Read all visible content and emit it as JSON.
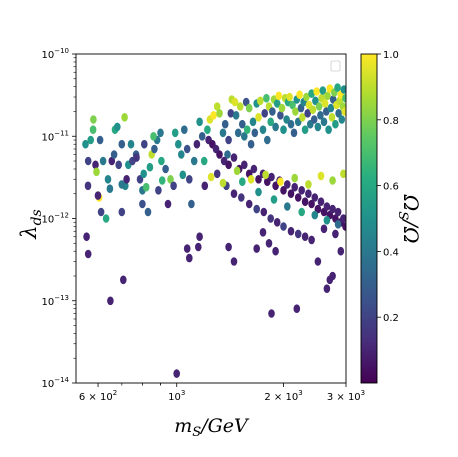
{
  "chart_data": {
    "type": "scatter",
    "xlabel": "m_S/GeV",
    "ylabel": "λ_ds",
    "colorbar_label": "Ω_S/Ω",
    "x_scale": "log",
    "y_scale": "log",
    "xlim": [
      520,
      3000
    ],
    "ylim": [
      1e-14,
      1e-10
    ],
    "clim": [
      0,
      1
    ],
    "colormap": "viridis",
    "legend": "upper-right, empty box",
    "grid": false,
    "x_ticks": [
      {
        "value": 600,
        "mant": "6",
        "exp": "2"
      },
      {
        "value": 1000,
        "mant": "",
        "exp": "3"
      },
      {
        "value": 2000,
        "mant": "2",
        "exp": "3"
      },
      {
        "value": 3000,
        "mant": "3",
        "exp": "3"
      }
    ],
    "y_ticks": [
      {
        "value": 1e-14,
        "exp": "−14"
      },
      {
        "value": 1e-13,
        "exp": "−13"
      },
      {
        "value": 1e-12,
        "exp": "−12"
      },
      {
        "value": 1e-11,
        "exp": "−11"
      },
      {
        "value": 1e-10,
        "exp": "−10"
      }
    ],
    "colorbar_ticks": [
      "0.2",
      "0.4",
      "0.6",
      "0.8",
      "1.0"
    ],
    "colorbar_tick_values": [
      0.2,
      0.4,
      0.6,
      0.8,
      1.0
    ],
    "points": [
      [
        553,
        8e-12,
        0.5
      ],
      [
        563,
        5e-12,
        0.2
      ],
      [
        557,
        6e-13,
        0.1
      ],
      [
        563,
        3.7e-13,
        0.1
      ],
      [
        582,
        1.6e-11,
        0.8
      ],
      [
        581,
        1.2e-11,
        0.7
      ],
      [
        572,
        9e-12,
        0.55
      ],
      [
        562,
        2.5e-12,
        0.15
      ],
      [
        590,
        4.5e-12,
        0.1
      ],
      [
        594,
        3.7e-12,
        0.85
      ],
      [
        604,
        1.8e-12,
        1.0
      ],
      [
        608,
        9e-12,
        0.3
      ],
      [
        620,
        5e-12,
        0.4
      ],
      [
        612,
        1.2e-12,
        0.2
      ],
      [
        632,
        1e-12,
        0.6
      ],
      [
        648,
        2.3e-12,
        0.4
      ],
      [
        656,
        5e-12,
        0.1
      ],
      [
        666,
        6e-12,
        0.3
      ],
      [
        670,
        1.2e-11,
        0.6
      ],
      [
        680,
        1.3e-11,
        0.5
      ],
      [
        686,
        4.5e-12,
        0.2
      ],
      [
        700,
        8e-12,
        0.3
      ],
      [
        713,
        1.7e-11,
        0.85
      ],
      [
        716,
        2.5e-12,
        0.45
      ],
      [
        722,
        3e-12,
        0.1
      ],
      [
        730,
        4.5e-12,
        0.5
      ],
      [
        700,
        1.2e-12,
        0.2
      ],
      [
        650,
        1e-13,
        0.1
      ],
      [
        707,
        1.8e-13,
        0.1
      ],
      [
        743,
        8e-12,
        0.45
      ],
      [
        750,
        5e-12,
        0.2
      ],
      [
        768,
        6e-12,
        0.3
      ],
      [
        788,
        3e-12,
        0.2
      ],
      [
        800,
        1.5e-12,
        0.25
      ],
      [
        800,
        2.2e-12,
        0.4
      ],
      [
        807,
        3.5e-12,
        0.5
      ],
      [
        820,
        2.4e-12,
        0.7
      ],
      [
        830,
        1.2e-12,
        0.3
      ],
      [
        810,
        8e-12,
        0.2
      ],
      [
        850,
        6e-12,
        0.9
      ],
      [
        865,
        7e-12,
        0.3
      ],
      [
        880,
        9e-12,
        0.4
      ],
      [
        888,
        2.2e-12,
        0.2
      ],
      [
        900,
        1.1e-11,
        0.4
      ],
      [
        860,
        1e-11,
        0.7
      ],
      [
        905,
        5e-12,
        0.6
      ],
      [
        930,
        4e-12,
        0.3
      ],
      [
        945,
        1.5e-12,
        0.1
      ],
      [
        960,
        3e-12,
        0.8
      ],
      [
        990,
        1.1e-11,
        0.55
      ],
      [
        1010,
        8e-12,
        0.5
      ],
      [
        1030,
        6e-12,
        0.45
      ],
      [
        1050,
        1.2e-11,
        0.35
      ],
      [
        1070,
        7e-12,
        0.25
      ],
      [
        1085,
        3e-12,
        0.2
      ],
      [
        1100,
        1.5e-12,
        0.3
      ],
      [
        1120,
        5e-12,
        0.4
      ],
      [
        1140,
        8e-12,
        0.1
      ],
      [
        1160,
        1.5e-11,
        0.5
      ],
      [
        1180,
        1e-11,
        0.3
      ],
      [
        1195,
        5e-12,
        0.6
      ],
      [
        1000,
        1.3e-14,
        0.1
      ],
      [
        1070,
        4.3e-13,
        0.1
      ],
      [
        1085,
        3.3e-13,
        0.1
      ],
      [
        1150,
        4.5e-13,
        0.1
      ],
      [
        1160,
        6e-13,
        0.1
      ],
      [
        1200,
        2.5e-12,
        0.1
      ],
      [
        1220,
        1.2e-11,
        0.6
      ],
      [
        1240,
        1.6e-11,
        0.95
      ],
      [
        1270,
        1.8e-11,
        1.0
      ],
      [
        1300,
        2.3e-11,
        0.9
      ],
      [
        1320,
        1.9e-11,
        0.85
      ],
      [
        1350,
        1.1e-11,
        0.4
      ],
      [
        1370,
        1.4e-11,
        0.3
      ],
      [
        1390,
        6e-12,
        0.35
      ],
      [
        1400,
        9e-12,
        0.2
      ],
      [
        1420,
        1.9e-11,
        0.2
      ],
      [
        1430,
        2.8e-11,
        0.9
      ],
      [
        1460,
        2.6e-11,
        0.95
      ],
      [
        1470,
        1.8e-11,
        0.4
      ],
      [
        1490,
        1.1e-11,
        0.35
      ],
      [
        1510,
        2.3e-11,
        0.9
      ],
      [
        1530,
        1.4e-11,
        0.3
      ],
      [
        1550,
        1e-11,
        0.4
      ],
      [
        1570,
        2.6e-11,
        0.25
      ],
      [
        1580,
        1.2e-11,
        0.65
      ],
      [
        1600,
        2.2e-11,
        0.8
      ],
      [
        1620,
        8e-12,
        0.3
      ],
      [
        1640,
        1.5e-11,
        0.45
      ],
      [
        1660,
        1.1e-11,
        0.3
      ],
      [
        1680,
        2.5e-11,
        0.5
      ],
      [
        1700,
        1.7e-11,
        0.95
      ],
      [
        1720,
        2.7e-11,
        0.9
      ],
      [
        1750,
        1.2e-11,
        0.45
      ],
      [
        1770,
        1.9e-11,
        0.2
      ],
      [
        1790,
        2.9e-11,
        0.7
      ],
      [
        1800,
        9e-12,
        0.35
      ],
      [
        1820,
        2.3e-11,
        0.9
      ],
      [
        1840,
        1.5e-11,
        0.6
      ],
      [
        1860,
        2e-11,
        0.3
      ],
      [
        1880,
        2.8e-11,
        0.85
      ],
      [
        1900,
        1.3e-11,
        0.4
      ],
      [
        1920,
        2.5e-11,
        0.55
      ],
      [
        1940,
        3.1e-11,
        1.0
      ],
      [
        1960,
        1.8e-11,
        0.25
      ],
      [
        1980,
        2.2e-11,
        0.85
      ],
      [
        2000,
        1.2e-11,
        0.5
      ],
      [
        2020,
        2.9e-11,
        0.9
      ],
      [
        2040,
        1.6e-11,
        0.45
      ],
      [
        2060,
        2.6e-11,
        0.6
      ],
      [
        2080,
        3e-11,
        0.95
      ],
      [
        2100,
        1.4e-11,
        0.35
      ],
      [
        2120,
        2.4e-11,
        0.7
      ],
      [
        2140,
        1.1e-11,
        0.3
      ],
      [
        2160,
        2e-11,
        0.85
      ],
      [
        2180,
        2.8e-11,
        0.5
      ],
      [
        2200,
        1.5e-11,
        0.4
      ],
      [
        2220,
        3.2e-11,
        1.0
      ],
      [
        2240,
        2.2e-11,
        0.3
      ],
      [
        2260,
        1.7e-11,
        0.9
      ],
      [
        2280,
        2.6e-11,
        0.45
      ],
      [
        2300,
        1.2e-11,
        0.55
      ],
      [
        2320,
        3e-11,
        0.85
      ],
      [
        2340,
        1.9e-11,
        0.2
      ],
      [
        2360,
        2.4e-11,
        0.95
      ],
      [
        2380,
        1.4e-11,
        0.4
      ],
      [
        2400,
        3.3e-11,
        0.6
      ],
      [
        2420,
        2.1e-11,
        0.9
      ],
      [
        2440,
        1.6e-11,
        0.3
      ],
      [
        2460,
        2.7e-11,
        0.5
      ],
      [
        2480,
        3.5e-11,
        1.0
      ],
      [
        2500,
        1.3e-11,
        0.45
      ],
      [
        2520,
        2.3e-11,
        0.8
      ],
      [
        2540,
        1.8e-11,
        0.35
      ],
      [
        2560,
        2.9e-11,
        0.9
      ],
      [
        2580,
        3.6e-11,
        0.55
      ],
      [
        2600,
        1.5e-11,
        0.4
      ],
      [
        2620,
        2.5e-11,
        0.95
      ],
      [
        2640,
        2e-11,
        0.3
      ],
      [
        2660,
        3.1e-11,
        0.85
      ],
      [
        2680,
        1.2e-11,
        0.5
      ],
      [
        2700,
        3.8e-11,
        1.0
      ],
      [
        2720,
        2.2e-11,
        0.45
      ],
      [
        2740,
        1.7e-11,
        0.9
      ],
      [
        2760,
        2.8e-11,
        0.3
      ],
      [
        2780,
        3.4e-11,
        0.8
      ],
      [
        2800,
        1.4e-11,
        0.55
      ],
      [
        2820,
        2.4e-11,
        0.95
      ],
      [
        2840,
        3.9e-11,
        0.6
      ],
      [
        2860,
        1.9e-11,
        0.35
      ],
      [
        2880,
        2.7e-11,
        0.9
      ],
      [
        2900,
        3.2e-11,
        1.0
      ],
      [
        2920,
        1.6e-11,
        0.45
      ],
      [
        2940,
        2.3e-11,
        0.85
      ],
      [
        2960,
        3.7e-11,
        0.5
      ],
      [
        2975,
        2e-11,
        0.95
      ],
      [
        2990,
        2.9e-11,
        0.7
      ],
      [
        1230,
        9e-12,
        0.1
      ],
      [
        1260,
        8e-12,
        0.05
      ],
      [
        1290,
        7e-12,
        0.1
      ],
      [
        1320,
        6e-12,
        0.05
      ],
      [
        1360,
        5e-12,
        0.1
      ],
      [
        1400,
        4.5e-12,
        0.05
      ],
      [
        1450,
        5.5e-12,
        0.1
      ],
      [
        1500,
        4e-12,
        0.05
      ],
      [
        1550,
        4.5e-12,
        0.1
      ],
      [
        1600,
        3.5e-12,
        0.05
      ],
      [
        1650,
        4e-12,
        0.1
      ],
      [
        1700,
        3e-12,
        0.05
      ],
      [
        1750,
        3.5e-12,
        0.1
      ],
      [
        1800,
        2.8e-12,
        0.05
      ],
      [
        1850,
        3.2e-12,
        0.1
      ],
      [
        1900,
        2.5e-12,
        0.05
      ],
      [
        1950,
        2.9e-12,
        0.1
      ],
      [
        2000,
        2.2e-12,
        0.05
      ],
      [
        2050,
        2.6e-12,
        0.1
      ],
      [
        2100,
        2e-12,
        0.05
      ],
      [
        2150,
        2.4e-12,
        0.1
      ],
      [
        2200,
        1.8e-12,
        0.05
      ],
      [
        2250,
        2.2e-12,
        0.1
      ],
      [
        2300,
        1.6e-12,
        0.05
      ],
      [
        2350,
        2e-12,
        0.1
      ],
      [
        2400,
        1.5e-12,
        0.05
      ],
      [
        2450,
        1.8e-12,
        0.1
      ],
      [
        2500,
        1.3e-12,
        0.05
      ],
      [
        2550,
        1.6e-12,
        0.1
      ],
      [
        2600,
        1.2e-12,
        0.05
      ],
      [
        2650,
        1.4e-12,
        0.1
      ],
      [
        2700,
        1.1e-12,
        0.05
      ],
      [
        2750,
        1.3e-12,
        0.1
      ],
      [
        2800,
        1e-12,
        0.05
      ],
      [
        2850,
        1.2e-12,
        0.1
      ],
      [
        2900,
        9e-13,
        0.05
      ],
      [
        2950,
        1e-12,
        0.1
      ],
      [
        2990,
        8e-13,
        0.05
      ],
      [
        1300,
        3.5e-12,
        0.15
      ],
      [
        1380,
        2.5e-12,
        0.2
      ],
      [
        1450,
        2e-12,
        0.1
      ],
      [
        1520,
        1.8e-12,
        0.15
      ],
      [
        1600,
        1.5e-12,
        0.1
      ],
      [
        1680,
        1.3e-12,
        0.2
      ],
      [
        1760,
        1.2e-12,
        0.1
      ],
      [
        1840,
        1e-12,
        0.15
      ],
      [
        1920,
        9e-13,
        0.1
      ],
      [
        2000,
        8e-13,
        0.2
      ],
      [
        2100,
        7e-13,
        0.1
      ],
      [
        2200,
        6.5e-13,
        0.15
      ],
      [
        2300,
        6e-13,
        0.1
      ],
      [
        2400,
        5.5e-13,
        0.1
      ],
      [
        2600,
        7.5e-13,
        0.1
      ],
      [
        2800,
        6.5e-13,
        0.1
      ],
      [
        1750,
        6.8e-13,
        0.1
      ],
      [
        1820,
        5e-13,
        0.1
      ],
      [
        1680,
        4.3e-13,
        0.1
      ],
      [
        1400,
        4.5e-13,
        0.1
      ],
      [
        1450,
        3e-13,
        0.1
      ],
      [
        1900,
        4e-13,
        0.1
      ],
      [
        2500,
        3e-13,
        0.1
      ],
      [
        2750,
        2e-13,
        0.1
      ],
      [
        2650,
        1.4e-13,
        0.1
      ],
      [
        1850,
        7e-14,
        0.1
      ],
      [
        2180,
        8e-14,
        0.1
      ],
      [
        2700,
        1.8e-13,
        0.1
      ],
      [
        2900,
        4e-13,
        0.1
      ],
      [
        1530,
        2.8e-12,
        0.6
      ],
      [
        1700,
        2.1e-12,
        0.5
      ],
      [
        1880,
        1.7e-12,
        0.55
      ],
      [
        2050,
        1.4e-12,
        0.4
      ],
      [
        2250,
        1.2e-12,
        0.6
      ],
      [
        2450,
        1.1e-12,
        0.45
      ],
      [
        2650,
        9.5e-13,
        0.5
      ],
      [
        2850,
        8.5e-13,
        0.35
      ],
      [
        1250,
        3.2e-12,
        0.95
      ],
      [
        1350,
        2.7e-12,
        0.9
      ],
      [
        1480,
        3.8e-12,
        0.85
      ],
      [
        1620,
        3e-12,
        0.95
      ],
      [
        1780,
        3.4e-12,
        0.9
      ],
      [
        1960,
        2.8e-12,
        1.0
      ],
      [
        2150,
        3.1e-12,
        0.85
      ],
      [
        2350,
        2.6e-12,
        0.9
      ],
      [
        2550,
        3.3e-12,
        0.95
      ],
      [
        2750,
        2.9e-12,
        0.85
      ],
      [
        2950,
        3.5e-12,
        0.9
      ],
      [
        600,
        1.9e-12,
        0.1
      ],
      [
        640,
        3e-12,
        0.45
      ],
      [
        700,
        2.6e-12,
        0.4
      ],
      [
        770,
        5.5e-12,
        0.15
      ],
      [
        840,
        4.2e-12,
        0.55
      ],
      [
        910,
        2.9e-12,
        0.65
      ],
      [
        980,
        2.5e-12,
        0.2
      ],
      [
        1040,
        3.4e-12,
        0.5
      ]
    ]
  }
}
